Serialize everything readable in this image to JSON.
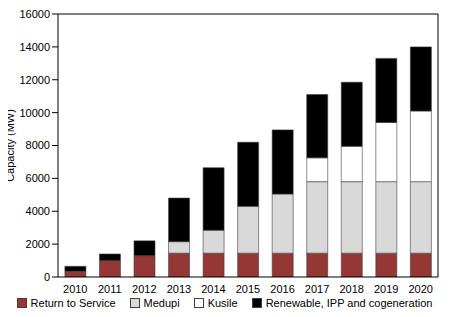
{
  "chart_data": {
    "type": "bar",
    "stacked": true,
    "grid": false,
    "legend": "bottom",
    "y_label": "Capacity (MW)",
    "categories": [
      "2010",
      "2011",
      "2012",
      "2013",
      "2014",
      "2015",
      "2016",
      "2017",
      "2018",
      "2019",
      "2020"
    ],
    "ylim": [
      0,
      16000
    ],
    "yticks": [
      0,
      2000,
      4000,
      6000,
      8000,
      10000,
      12000,
      14000,
      16000
    ],
    "series": [
      {
        "name": "Return to Service",
        "color": "#953735",
        "values": [
          350,
          1000,
          1300,
          1450,
          1450,
          1450,
          1450,
          1450,
          1450,
          1450,
          1450
        ]
      },
      {
        "name": "Medupi",
        "color": "#d9d9d9",
        "values": [
          0,
          0,
          0,
          700,
          1400,
          2850,
          3600,
          4350,
          4350,
          4350,
          4350
        ]
      },
      {
        "name": "Kusile",
        "color": "#ffffff",
        "values": [
          0,
          0,
          0,
          0,
          0,
          0,
          0,
          1450,
          2150,
          3600,
          4300
        ]
      },
      {
        "name": "Renewable, IPP and cogeneration",
        "color": "#000000",
        "values": [
          300,
          400,
          900,
          2650,
          3800,
          3900,
          3900,
          3850,
          3900,
          3900,
          3900
        ]
      }
    ]
  }
}
